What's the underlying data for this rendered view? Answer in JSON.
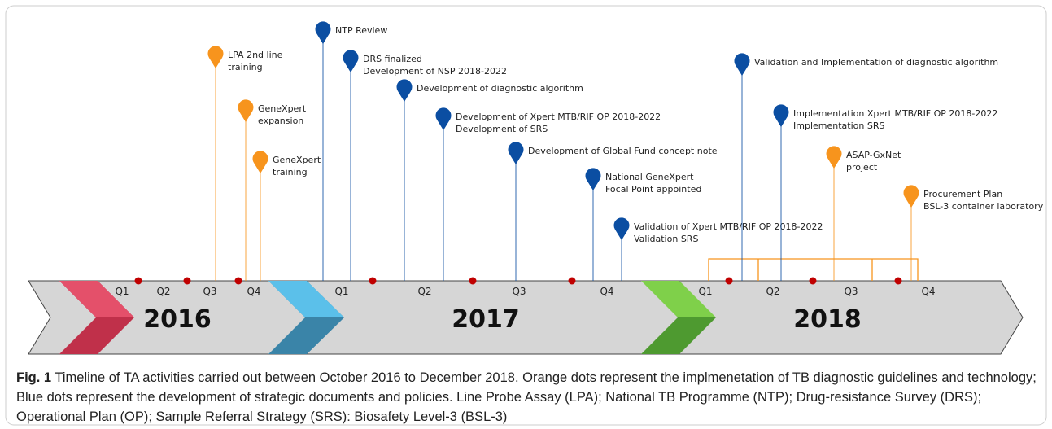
{
  "timeline": {
    "years": [
      "2016",
      "2017",
      "2018"
    ],
    "quarters": [
      "Q1",
      "Q2",
      "Q3",
      "Q4"
    ],
    "events": [
      {
        "lines": [
          "LPA 2nd line",
          "training"
        ],
        "color": "#f7941d"
      },
      {
        "lines": [
          "GeneXpert",
          "expansion"
        ],
        "color": "#f7941d"
      },
      {
        "lines": [
          "GeneXpert",
          "training"
        ],
        "color": "#f7941d"
      },
      {
        "lines": [
          "NTP  Review"
        ],
        "color": "#0b4ea2"
      },
      {
        "lines": [
          "DRS finalized",
          "Development of NSP 2018-2022"
        ],
        "color": "#0b4ea2"
      },
      {
        "lines": [
          "Development of diagnostic algorithm"
        ],
        "color": "#0b4ea2"
      },
      {
        "lines": [
          "Development of Xpert MTB/RIF OP 2018-2022",
          "Development of SRS"
        ],
        "color": "#0b4ea2"
      },
      {
        "lines": [
          "Development of Global Fund concept note"
        ],
        "color": "#0b4ea2"
      },
      {
        "lines": [
          "National GeneXpert",
          "Focal Point appointed"
        ],
        "color": "#0b4ea2"
      },
      {
        "lines": [
          "Validation of Xpert MTB/RIF OP 2018-2022",
          "Validation SRS"
        ],
        "color": "#0b4ea2"
      },
      {
        "lines": [
          "Validation and Implementation of diagnostic algorithm"
        ],
        "color": "#0b4ea2"
      },
      {
        "lines": [
          "Implementation Xpert MTB/RIF OP 2018-2022",
          "Implementation SRS"
        ],
        "color": "#0b4ea2"
      },
      {
        "lines": [
          "ASAP-GxNet",
          "project"
        ],
        "color": "#f7941d"
      },
      {
        "lines": [
          "Procurement Plan",
          "BSL-3 container laboratory"
        ],
        "color": "#f7941d"
      }
    ]
  },
  "caption": {
    "label": "Fig. 1",
    "title": "Timeline of TA activities carried out between October 2016 to December 2018.",
    "text": "Orange dots represent the implmenetation of TB diagnostic guidelines and technology; Blue dots represent the development of strategic documents and policies. Line Probe Assay (LPA); National TB Programme (NTP); Drug-resistance Survey (DRS); Operational Plan (OP); Sample Referral Strategy (SRS): Biosafety Level-3 (BSL-3)"
  }
}
